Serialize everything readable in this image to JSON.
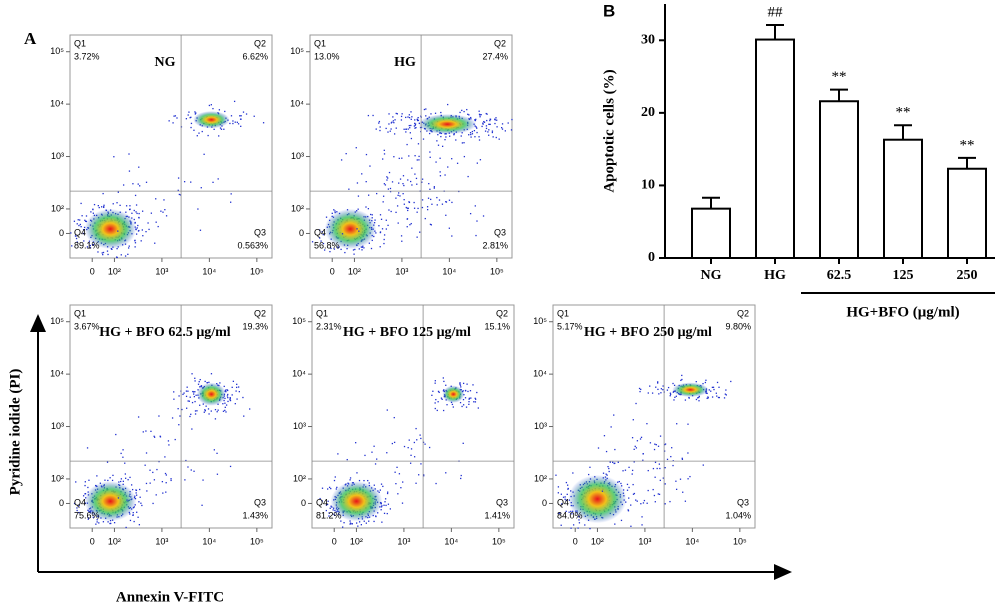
{
  "chart_data": [
    {
      "type": "bar",
      "panel_label": "B",
      "ylabel": "Apoptotic cells (%)",
      "categories": [
        "NG",
        "HG",
        "62.5",
        "125",
        "250"
      ],
      "values": [
        6.8,
        30.1,
        21.6,
        16.3,
        12.3
      ],
      "errors": [
        1.5,
        2.0,
        1.6,
        2.0,
        1.5
      ],
      "significance": [
        null,
        "##",
        "**",
        "**",
        "**"
      ],
      "group_label": "HG+BFO (μg/ml)",
      "color": "#ffffff",
      "ylim": [
        0,
        35
      ],
      "yticks": [
        0,
        10,
        20,
        30
      ]
    },
    {
      "type": "flow",
      "title": "NG",
      "quadrants": [
        "Q1",
        "Q2",
        "Q3",
        "Q4"
      ],
      "values": [
        3.72,
        6.62,
        0.563,
        89.1
      ],
      "value_labels": [
        "3.72%",
        "6.62%",
        "0.563%",
        "89.1%"
      ]
    },
    {
      "type": "flow",
      "title": "HG",
      "quadrants": [
        "Q1",
        "Q2",
        "Q3",
        "Q4"
      ],
      "values": [
        13.0,
        27.4,
        2.81,
        56.8
      ],
      "value_labels": [
        "13.0%",
        "27.4%",
        "2.81%",
        "56.8%"
      ]
    },
    {
      "type": "flow",
      "title": "HG + BFO 62.5 μg/ml",
      "quadrants": [
        "Q1",
        "Q2",
        "Q3",
        "Q4"
      ],
      "values": [
        3.67,
        19.3,
        1.43,
        75.6
      ],
      "value_labels": [
        "3.67%",
        "19.3%",
        "1.43%",
        "75.6%"
      ]
    },
    {
      "type": "flow",
      "title": "HG + BFO 125 μg/ml",
      "quadrants": [
        "Q1",
        "Q2",
        "Q3",
        "Q4"
      ],
      "values": [
        2.31,
        15.1,
        1.41,
        81.2
      ],
      "value_labels": [
        "2.31%",
        "15.1%",
        "1.41%",
        "81.2%"
      ]
    },
    {
      "type": "flow",
      "title": "HG + BFO 250 μg/ml",
      "quadrants": [
        "Q1",
        "Q2",
        "Q3",
        "Q4"
      ],
      "values": [
        5.17,
        9.8,
        1.04,
        84.0
      ],
      "value_labels": [
        "5.17%",
        "9.80%",
        "1.04%",
        "84.0%"
      ]
    }
  ],
  "flow_axes": {
    "panel_label": "A",
    "xlabel": "Annexin V-FITC",
    "ylabel": "Pyridine iodide (PI)",
    "log_scale": true,
    "xticks": [
      0,
      {
        "value": 100,
        "label": "10²"
      },
      {
        "value": 1000,
        "label": "10³"
      },
      {
        "value": 10000,
        "label": "10⁴"
      },
      {
        "value": 100000,
        "label": "10⁵"
      }
    ],
    "yticks": [
      0,
      {
        "value": 100,
        "label": "10²"
      },
      {
        "value": 1000,
        "label": "10³"
      },
      {
        "value": 10000,
        "label": "10⁴"
      },
      {
        "value": 100000,
        "label": "10⁵"
      }
    ]
  }
}
